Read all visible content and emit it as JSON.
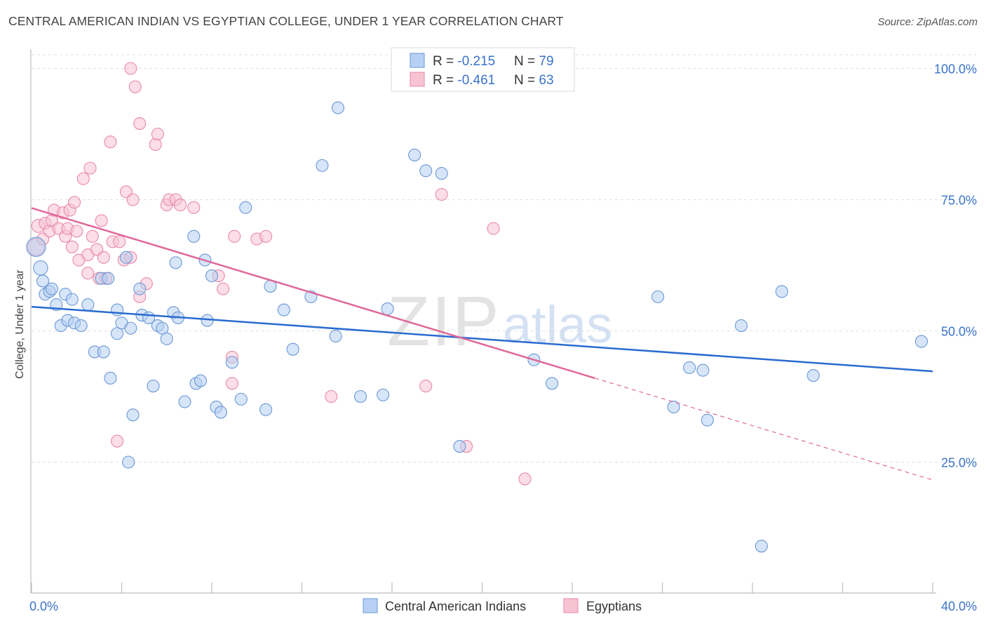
{
  "title": "CENTRAL AMERICAN INDIAN VS EGYPTIAN COLLEGE, UNDER 1 YEAR CORRELATION CHART",
  "source": "Source: ZipAtlas.com",
  "watermark": {
    "zip": "ZIP",
    "atlas": "atlas"
  },
  "colors": {
    "blue_fill": "#b7d0f3",
    "blue_stroke": "#6a98d6",
    "blue_line": "#2a6bd0",
    "pink_fill": "#f7c3d3",
    "pink_stroke": "#e98aa8",
    "pink_line": "#e0689a",
    "value_text": "#3a73c9",
    "grid": "#e2e2e2"
  },
  "legend_top": {
    "rows": [
      {
        "r_label": "R = ",
        "r_value": "-0.215",
        "n_label": "N = ",
        "n_value": "79"
      },
      {
        "r_label": "R = ",
        "r_value": "-0.461",
        "n_label": "N = ",
        "n_value": "63"
      }
    ]
  },
  "legend_bottom": [
    "Central American Indians",
    "Egyptians"
  ],
  "chart_data": {
    "type": "scatter",
    "title": "CENTRAL AMERICAN INDIAN VS EGYPTIAN COLLEGE, UNDER 1 YEAR CORRELATION CHART",
    "xlabel": "",
    "ylabel": "College, Under 1 year",
    "xlim": [
      0,
      40
    ],
    "ylim": [
      0,
      104
    ],
    "x_tick_labels": [
      "0.0%",
      "40.0%"
    ],
    "y_ticks": [
      25,
      50,
      75,
      100
    ],
    "y_tick_labels": [
      "25.0%",
      "50.0%",
      "75.0%",
      "100.0%"
    ],
    "grid": true,
    "legend_position": "bottom",
    "series": [
      {
        "name": "Central American Indians",
        "R": -0.215,
        "N": 79,
        "trend": {
          "x": [
            0,
            40
          ],
          "y": [
            54.6,
            42.3
          ]
        },
        "points": [
          [
            0.2,
            66,
            1.6
          ],
          [
            0.4,
            62,
            1.2
          ],
          [
            0.5,
            59.5,
            1
          ],
          [
            0.6,
            57,
            1
          ],
          [
            0.8,
            57.5,
            1
          ],
          [
            0.9,
            58,
            1
          ],
          [
            1.1,
            55,
            1
          ],
          [
            1.3,
            51,
            1
          ],
          [
            1.5,
            57,
            1
          ],
          [
            1.6,
            52,
            1
          ],
          [
            1.8,
            56,
            1
          ],
          [
            1.9,
            51.5,
            1
          ],
          [
            2.2,
            51,
            1
          ],
          [
            2.5,
            55,
            1
          ],
          [
            2.8,
            46,
            1
          ],
          [
            3.1,
            60,
            1
          ],
          [
            3.2,
            46,
            1
          ],
          [
            3.4,
            60,
            1
          ],
          [
            3.5,
            41,
            1
          ],
          [
            3.8,
            54,
            1
          ],
          [
            3.8,
            49.5,
            1
          ],
          [
            4.0,
            51.5,
            1
          ],
          [
            4.2,
            64,
            1
          ],
          [
            4.3,
            25,
            1
          ],
          [
            4.4,
            50.5,
            1
          ],
          [
            4.5,
            34,
            1
          ],
          [
            4.8,
            58,
            1
          ],
          [
            4.9,
            53,
            1
          ],
          [
            5.2,
            52.5,
            1
          ],
          [
            5.4,
            39.5,
            1
          ],
          [
            5.6,
            51,
            1
          ],
          [
            5.8,
            50.5,
            1
          ],
          [
            6.0,
            48.5,
            1
          ],
          [
            6.3,
            53.5,
            1
          ],
          [
            6.4,
            63,
            1
          ],
          [
            6.5,
            52.5,
            1
          ],
          [
            6.8,
            36.5,
            1
          ],
          [
            7.2,
            68,
            1
          ],
          [
            7.3,
            40,
            1
          ],
          [
            7.5,
            40.5,
            1
          ],
          [
            7.7,
            63.5,
            1
          ],
          [
            7.8,
            52,
            1
          ],
          [
            8.0,
            60.5,
            1
          ],
          [
            8.2,
            35.5,
            1
          ],
          [
            8.4,
            34.5,
            1
          ],
          [
            8.9,
            44,
            1
          ],
          [
            9.3,
            37,
            1
          ],
          [
            9.5,
            73.5,
            1
          ],
          [
            10.4,
            35,
            1
          ],
          [
            10.6,
            58.5,
            1
          ],
          [
            11.2,
            54,
            1
          ],
          [
            11.6,
            46.5,
            1
          ],
          [
            12.4,
            56.5,
            1
          ],
          [
            12.9,
            81.5,
            1
          ],
          [
            13.5,
            49,
            1
          ],
          [
            13.6,
            92.5,
            1
          ],
          [
            14.6,
            37.5,
            1
          ],
          [
            15.6,
            37.8,
            1
          ],
          [
            15.8,
            54.2,
            1
          ],
          [
            17.0,
            83.5,
            1
          ],
          [
            17.5,
            80.5,
            1
          ],
          [
            18.2,
            80,
            1
          ],
          [
            19.0,
            28,
            1
          ],
          [
            22.3,
            44.5,
            1
          ],
          [
            23.1,
            40,
            1
          ],
          [
            27.8,
            56.5,
            1
          ],
          [
            28.5,
            35.5,
            1
          ],
          [
            29.2,
            43,
            1
          ],
          [
            29.8,
            42.5,
            1
          ],
          [
            30.0,
            33,
            1
          ],
          [
            31.5,
            51,
            1
          ],
          [
            32.4,
            9,
            1
          ],
          [
            33.3,
            57.5,
            1
          ],
          [
            34.7,
            41.5,
            1
          ],
          [
            39.5,
            48,
            1
          ]
        ]
      },
      {
        "name": "Egyptians",
        "R": -0.461,
        "N": 63,
        "trend": {
          "x": [
            0,
            25
          ],
          "y": [
            73.4,
            41.0
          ]
        },
        "trend_dashed": {
          "x": [
            25,
            40
          ],
          "y": [
            41.0,
            21.6
          ]
        },
        "points": [
          [
            0.2,
            66,
            1.4
          ],
          [
            0.3,
            70,
            1.1
          ],
          [
            0.5,
            67.5,
            1
          ],
          [
            0.6,
            70.5,
            1
          ],
          [
            0.8,
            69,
            1
          ],
          [
            0.9,
            71,
            1
          ],
          [
            1.0,
            73,
            1
          ],
          [
            1.2,
            69.5,
            1
          ],
          [
            1.4,
            72.5,
            1
          ],
          [
            1.5,
            68,
            1
          ],
          [
            1.6,
            69.5,
            1
          ],
          [
            1.7,
            73,
            1
          ],
          [
            1.8,
            66,
            1
          ],
          [
            1.9,
            74.5,
            1
          ],
          [
            2.0,
            69,
            1
          ],
          [
            2.1,
            63.5,
            1
          ],
          [
            2.3,
            79,
            1
          ],
          [
            2.5,
            61,
            1
          ],
          [
            2.5,
            64.5,
            1
          ],
          [
            2.6,
            81,
            1
          ],
          [
            2.7,
            68,
            1
          ],
          [
            2.9,
            65.5,
            1
          ],
          [
            3.0,
            60,
            1
          ],
          [
            3.1,
            71,
            1
          ],
          [
            3.2,
            64,
            1
          ],
          [
            3.3,
            60,
            1
          ],
          [
            3.5,
            86,
            1
          ],
          [
            3.6,
            67,
            1
          ],
          [
            3.8,
            29,
            1
          ],
          [
            3.9,
            67,
            1
          ],
          [
            4.1,
            63.5,
            1
          ],
          [
            4.2,
            76.5,
            1
          ],
          [
            4.4,
            64,
            1
          ],
          [
            4.4,
            100,
            1
          ],
          [
            4.5,
            75,
            1
          ],
          [
            4.6,
            96.5,
            1
          ],
          [
            4.8,
            56.5,
            1
          ],
          [
            4.8,
            89.5,
            1
          ],
          [
            5.1,
            59,
            1
          ],
          [
            5.5,
            85.5,
            1
          ],
          [
            5.6,
            87.5,
            1
          ],
          [
            6.0,
            74,
            1
          ],
          [
            6.1,
            75,
            1
          ],
          [
            6.4,
            75,
            1
          ],
          [
            6.6,
            74,
            1
          ],
          [
            7.2,
            73.5,
            1
          ],
          [
            8.3,
            60.5,
            1
          ],
          [
            8.5,
            58,
            1
          ],
          [
            8.9,
            40,
            1
          ],
          [
            8.9,
            45,
            1
          ],
          [
            9.0,
            68,
            1
          ],
          [
            10.0,
            67.5,
            1
          ],
          [
            10.4,
            68,
            1
          ],
          [
            13.3,
            37.5,
            1
          ],
          [
            17.5,
            39.5,
            1
          ],
          [
            18.2,
            76,
            1
          ],
          [
            19.3,
            28,
            1
          ],
          [
            20.5,
            69.5,
            1
          ],
          [
            21.9,
            21.8,
            1
          ]
        ]
      }
    ]
  }
}
